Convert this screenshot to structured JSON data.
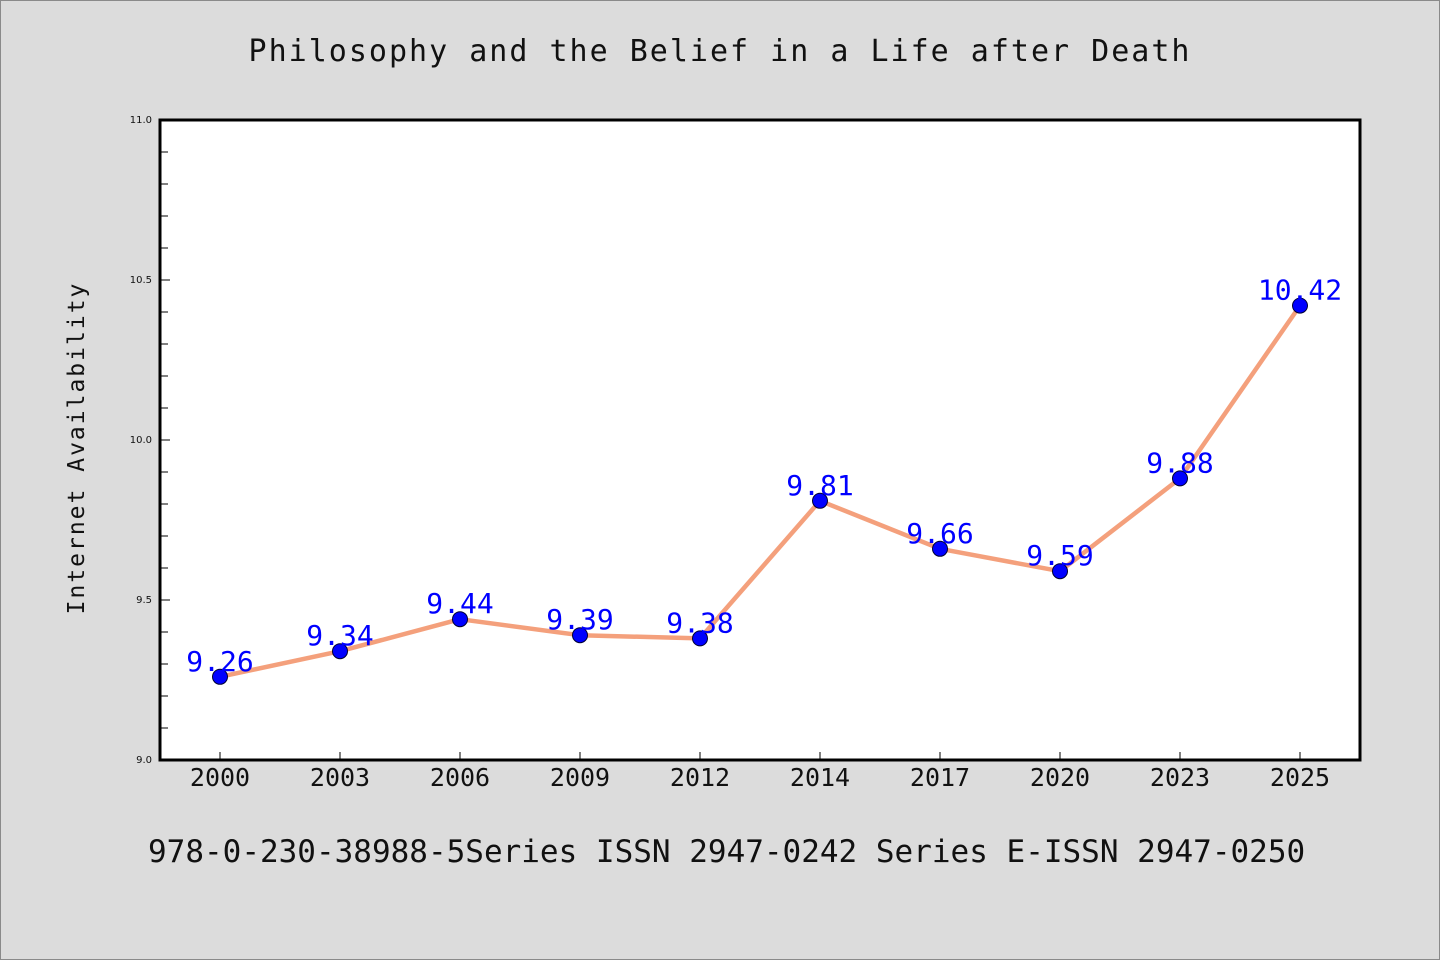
{
  "chart_data": {
    "type": "line",
    "title": "Philosophy and the Belief in a Life after Death",
    "xlabel": "",
    "ylabel": "Internet Availability",
    "categories": [
      "2000",
      "2003",
      "2006",
      "2009",
      "2012",
      "2014",
      "2017",
      "2020",
      "2023",
      "2025"
    ],
    "series": [
      {
        "values": [
          9.26,
          9.34,
          9.44,
          9.39,
          9.38,
          9.81,
          9.66,
          9.59,
          9.88,
          10.42
        ],
        "line_color": "#f4a07c",
        "marker_color": "#0000ff"
      }
    ],
    "data_labels": [
      "9.26",
      "9.34",
      "9.44",
      "9.39",
      "9.38",
      "9.81",
      "9.66",
      "9.59",
      "9.88",
      "10.42"
    ],
    "y_ticks": [
      "9.0",
      "9.5",
      "10.0",
      "10.5",
      "11.0"
    ],
    "ylim": [
      9.0,
      11.0
    ],
    "grid": false,
    "legend": "none",
    "label_color": "#0000ff"
  },
  "footnote": "978-0-230-38988-5Series ISSN 2947-0242 Series E-ISSN 2947-0250"
}
